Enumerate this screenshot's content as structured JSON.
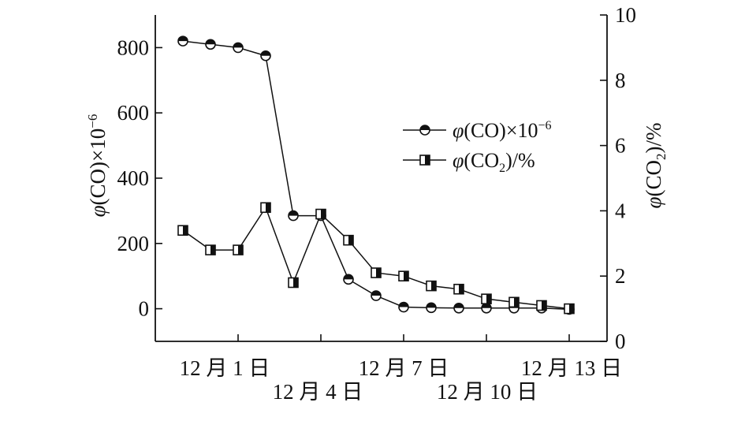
{
  "chart_data": {
    "type": "line",
    "categories": [
      "12 月 1 日",
      "12 月 4 日",
      "12 月 7 日",
      "12 月 10 日",
      "12 月 13 日"
    ],
    "ylabel": "φ(CO)×10⁻⁶",
    "y2label": "φ(CO₂)/%",
    "ylim": [
      -100,
      900
    ],
    "y2lim": [
      0,
      10
    ],
    "yticks": [
      0,
      200,
      400,
      600,
      800
    ],
    "y2ticks": [
      0,
      2,
      4,
      6,
      8,
      10
    ],
    "legend_placement": "center-right",
    "series": [
      {
        "name": "φ(CO)×10⁻⁶",
        "axis": "left",
        "marker": "circle-top-half",
        "x": [
          0,
          1,
          2,
          3,
          4,
          5,
          6,
          7,
          8,
          9,
          10,
          11,
          12,
          13,
          14
        ],
        "values": [
          820,
          810,
          800,
          775,
          285,
          285,
          90,
          40,
          5,
          3,
          2,
          2,
          2,
          2,
          -2
        ]
      },
      {
        "name": "φ(CO₂)/%",
        "axis": "right",
        "marker": "square-right-half",
        "x": [
          0,
          1,
          2,
          3,
          4,
          5,
          6,
          7,
          8,
          9,
          10,
          11,
          12,
          13,
          14
        ],
        "values": [
          3.4,
          2.8,
          2.8,
          4.1,
          1.8,
          3.9,
          3.1,
          2.1,
          2.0,
          1.7,
          1.6,
          1.3,
          1.2,
          1.1,
          1.0
        ]
      }
    ]
  },
  "labels": {
    "left_axis_prefix": "φ",
    "left_axis_main": "(CO)×10",
    "left_axis_exp": "−6",
    "right_axis_prefix": "φ",
    "right_axis_main": "(CO",
    "right_axis_sub": "2",
    "right_axis_suffix": ")/%",
    "legend_co_prefix": "φ",
    "legend_co_main": "(CO)×10",
    "legend_co_exp": "−6",
    "legend_co2_prefix": "φ",
    "legend_co2_main": "(CO",
    "legend_co2_sub": "2",
    "legend_co2_suffix": ")/%"
  }
}
